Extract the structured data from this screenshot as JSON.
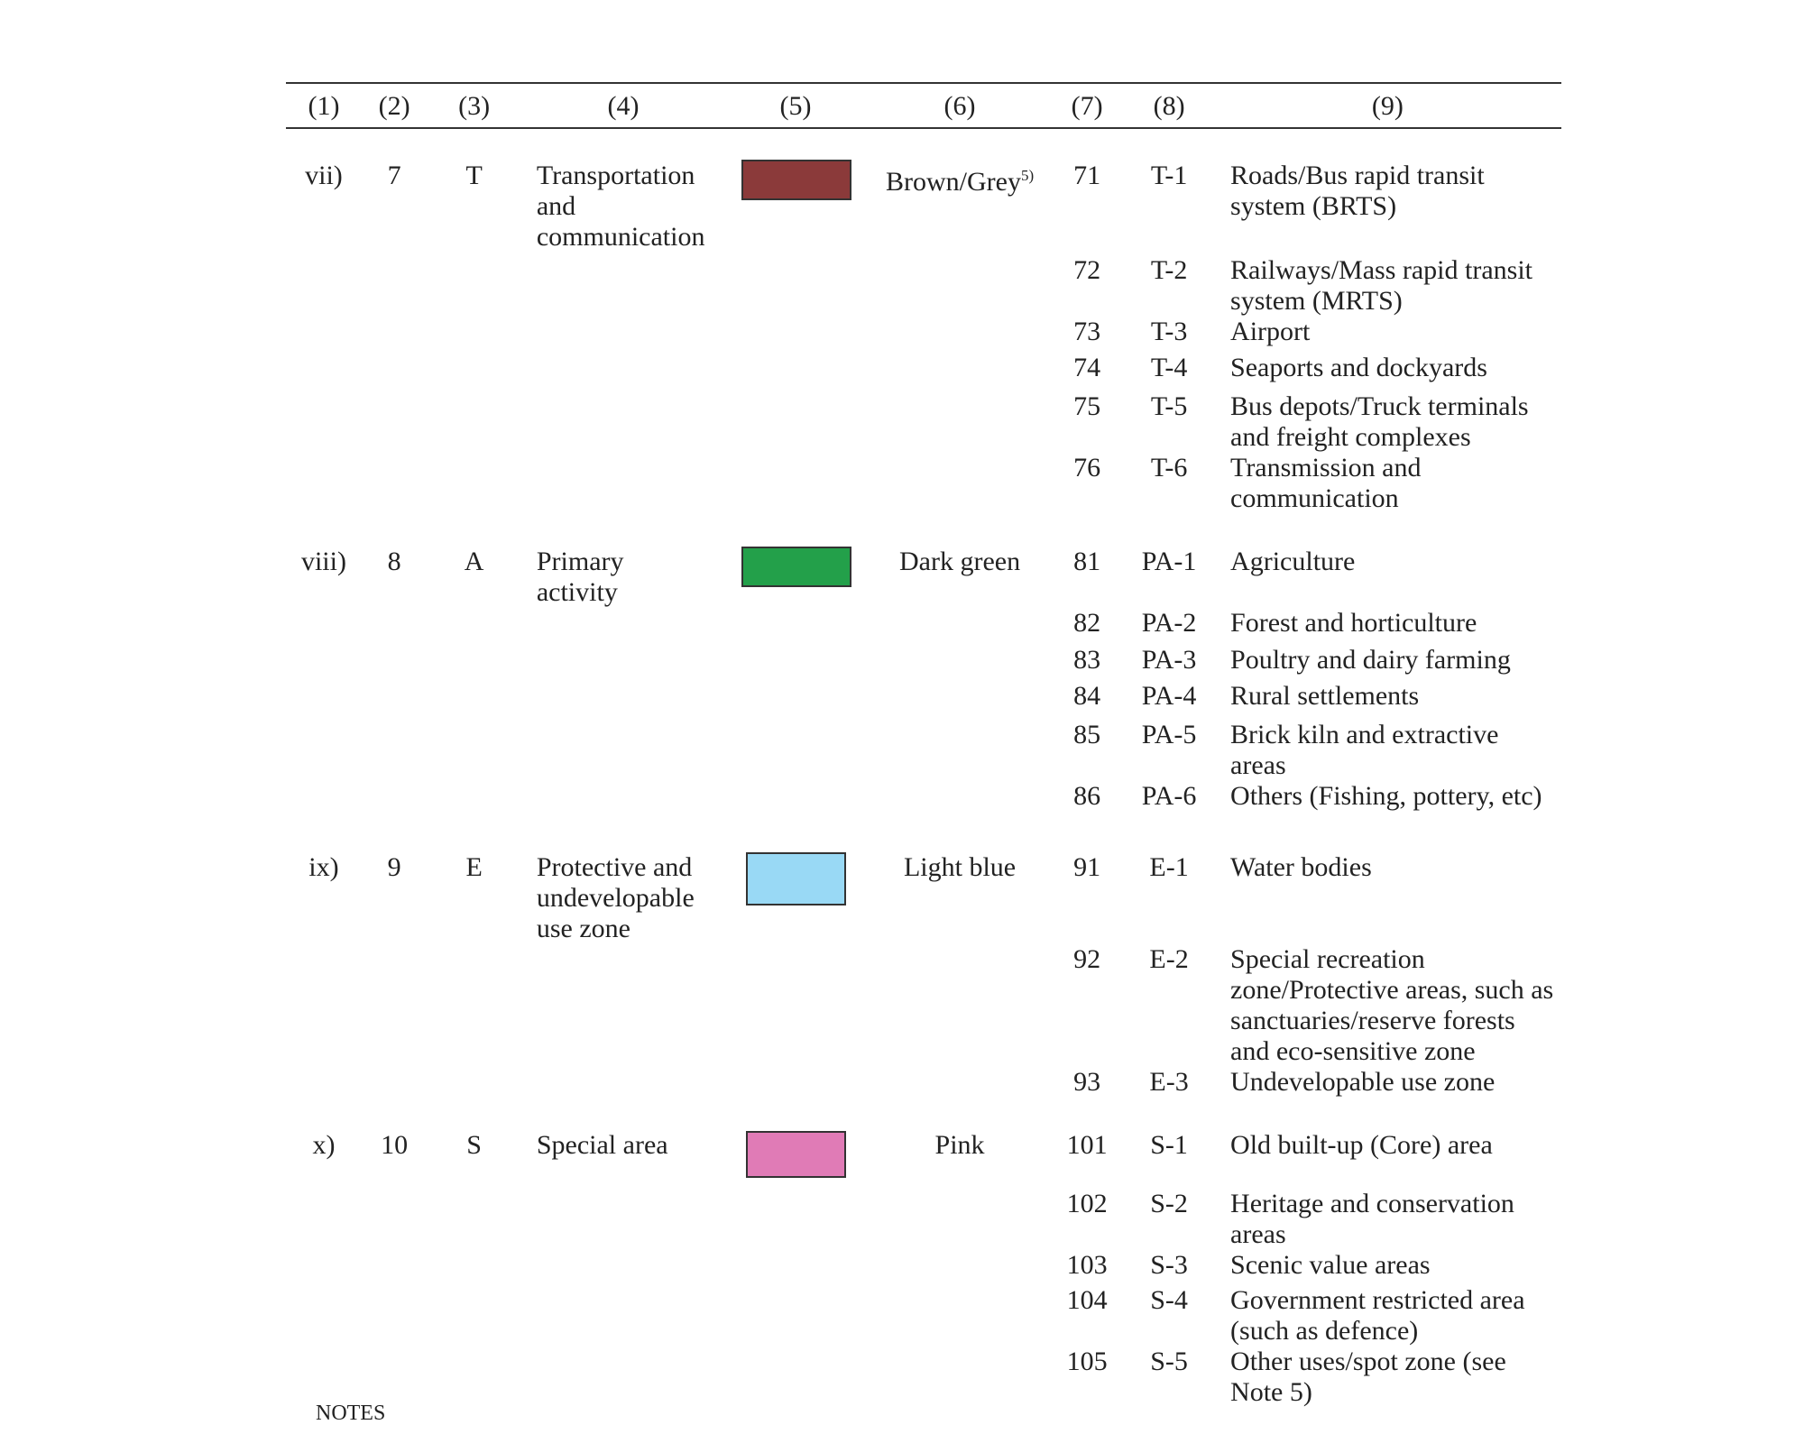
{
  "table": {
    "header": [
      "(1)",
      "(2)",
      "(3)",
      "(4)",
      "(5)",
      "(6)",
      "(7)",
      "(8)",
      "(9)"
    ],
    "groups": [
      {
        "roman": "vii)",
        "number": "7",
        "letter": "T",
        "name": [
          "Transportation",
          "and",
          "communication"
        ],
        "swatch": "#8b3a3a",
        "colour": "Brown/Grey",
        "note": "5)",
        "rows": [
          {
            "code": "71",
            "zone": "T-1",
            "use": [
              "Roads/Bus rapid transit",
              "system (BRTS)"
            ]
          },
          {
            "code": "72",
            "zone": "T-2",
            "use": [
              "Railways/Mass rapid transit",
              "system (MRTS)"
            ]
          },
          {
            "code": "73",
            "zone": "T-3",
            "use": [
              "Airport"
            ]
          },
          {
            "code": "74",
            "zone": "T-4",
            "use": [
              "Seaports and dockyards"
            ]
          },
          {
            "code": "75",
            "zone": "T-5",
            "use": [
              "Bus depots/Truck terminals",
              "and freight complexes"
            ]
          },
          {
            "code": "76",
            "zone": "T-6",
            "use": [
              "Transmission and",
              "communication"
            ]
          }
        ]
      },
      {
        "roman": "viii)",
        "number": "8",
        "letter": "A",
        "name": [
          "Primary",
          "activity"
        ],
        "swatch": "#23a04a",
        "colour": "Dark green",
        "rows": [
          {
            "code": "81",
            "zone": "PA-1",
            "use": [
              "Agriculture"
            ]
          },
          {
            "code": "82",
            "zone": "PA-2",
            "use": [
              "Forest and horticulture"
            ]
          },
          {
            "code": "83",
            "zone": "PA-3",
            "use": [
              "Poultry and dairy farming"
            ]
          },
          {
            "code": "84",
            "zone": "PA-4",
            "use": [
              "Rural settlements"
            ]
          },
          {
            "code": "85",
            "zone": "PA-5",
            "use": [
              "Brick kiln and extractive",
              "areas"
            ]
          },
          {
            "code": "86",
            "zone": "PA-6",
            "use": [
              "Others (Fishing, pottery, etc)"
            ]
          }
        ]
      },
      {
        "roman": "ix)",
        "number": "9",
        "letter": "E",
        "name": [
          "Protective and",
          "undevelopable",
          "use zone"
        ],
        "swatch": "#99d9f5",
        "colour": "Light blue",
        "rows": [
          {
            "code": "91",
            "zone": "E-1",
            "use": [
              "Water bodies"
            ]
          },
          {
            "code": "92",
            "zone": "E-2",
            "use": [
              "Special recreation",
              "zone/Protective areas, such as",
              "sanctuaries/reserve forests",
              "and eco-sensitive zone"
            ]
          },
          {
            "code": "93",
            "zone": "E-3",
            "use": [
              "Undevelopable use zone"
            ]
          }
        ]
      },
      {
        "roman": "x)",
        "number": "10",
        "letter": "S",
        "name": [
          "Special area"
        ],
        "swatch": "#e07bb6",
        "colour": "Pink",
        "rows": [
          {
            "code": "101",
            "zone": "S-1",
            "use": [
              "Old built-up (Core) area"
            ]
          },
          {
            "code": "102",
            "zone": "S-2",
            "use": [
              "Heritage and conservation",
              "areas"
            ]
          },
          {
            "code": "103",
            "zone": "S-3",
            "use": [
              "Scenic value areas"
            ]
          },
          {
            "code": "104",
            "zone": "S-4",
            "use": [
              "Government restricted area",
              "(such as defence)"
            ]
          },
          {
            "code": "105",
            "zone": "S-5",
            "use": [
              "Other uses/spot zone (see",
              "Note 5)"
            ]
          }
        ]
      }
    ]
  },
  "notes": {
    "heading": "NOTES"
  }
}
